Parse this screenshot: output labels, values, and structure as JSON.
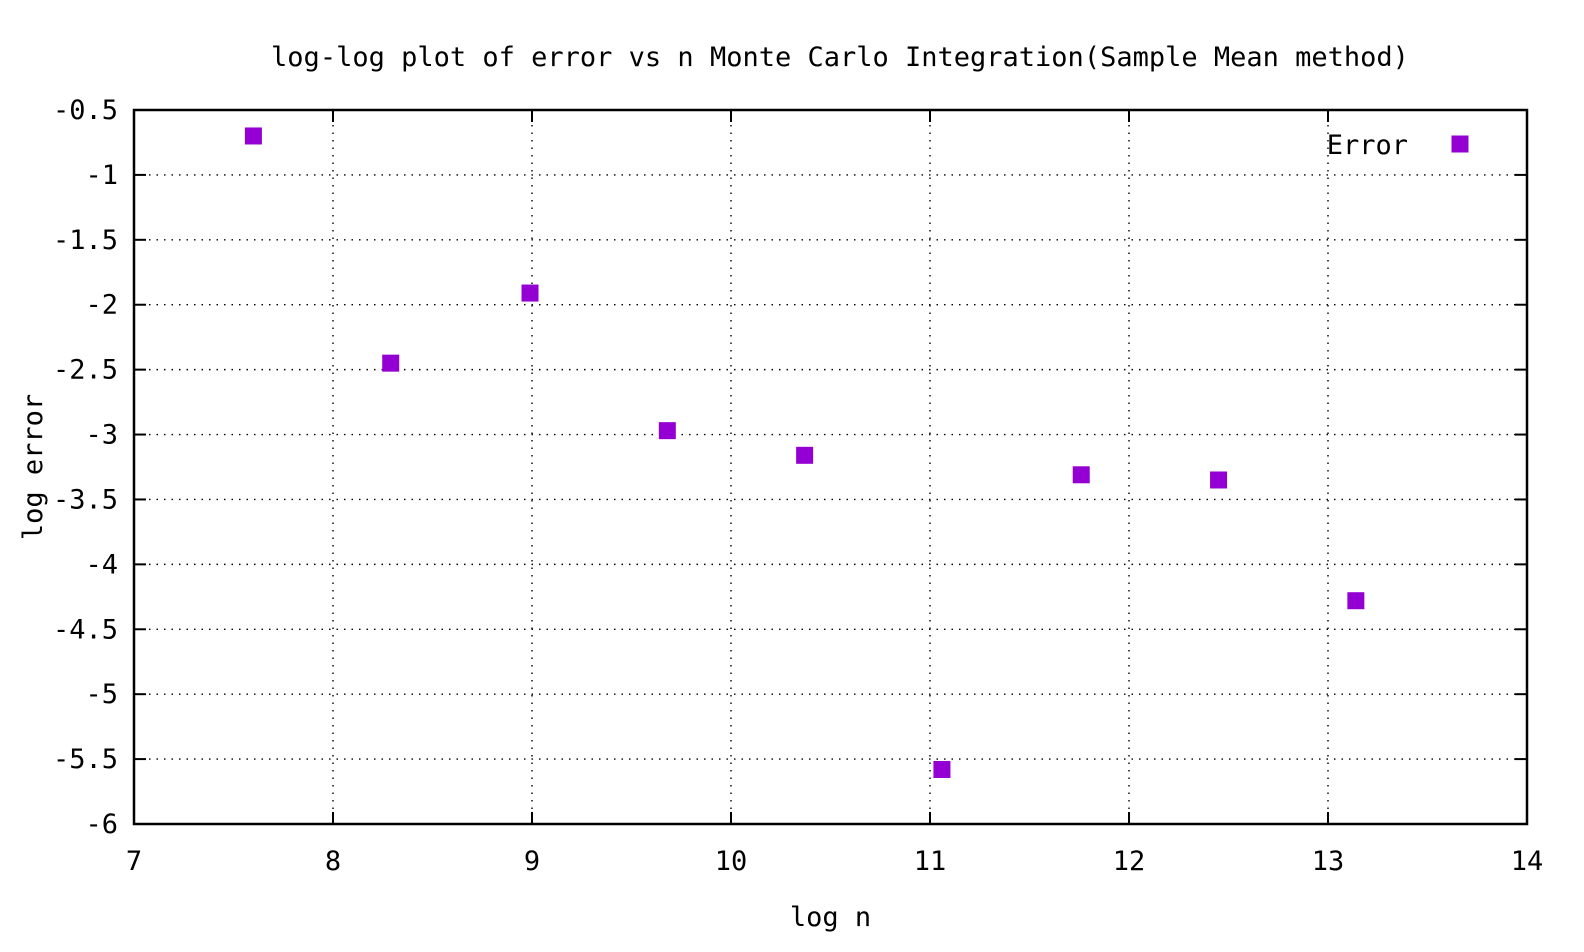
{
  "chart_data": {
    "type": "scatter",
    "title": "log-log plot of error vs n Monte Carlo Integration(Sample Mean method)",
    "xlabel": "log n",
    "ylabel": "log error",
    "xlim": [
      7,
      14
    ],
    "ylim": [
      -6,
      -0.5
    ],
    "xticks": [
      "7",
      "8",
      "9",
      "10",
      "11",
      "12",
      "13",
      "14"
    ],
    "yticks": [
      "-0.5",
      "-1",
      "-1.5",
      "-2",
      "-2.5",
      "-3",
      "-3.5",
      "-4",
      "-4.5",
      "-5",
      "-5.5",
      "-6"
    ],
    "grid": true,
    "legend_position": "top-right",
    "series": [
      {
        "name": "Error",
        "color": "#9400d3",
        "marker": "square",
        "x": [
          7.6,
          8.29,
          8.99,
          9.68,
          10.37,
          11.06,
          11.76,
          12.45,
          13.14
        ],
        "y": [
          -0.7,
          -2.45,
          -1.91,
          -2.97,
          -3.16,
          -5.58,
          -3.31,
          -3.35,
          -4.28
        ]
      }
    ]
  }
}
